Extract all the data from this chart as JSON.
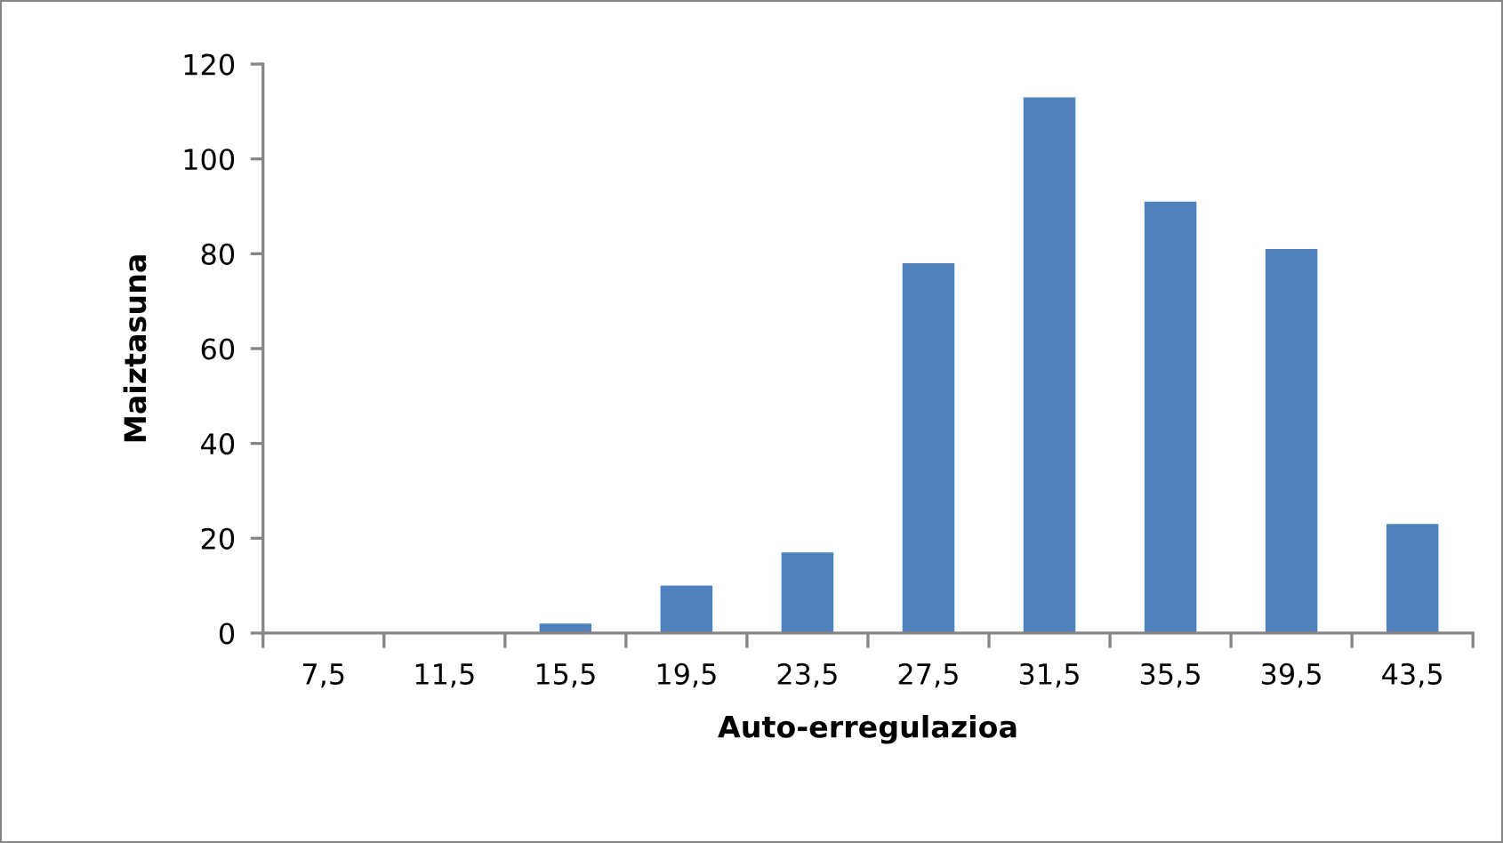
{
  "chart_data": {
    "type": "bar",
    "xlabel": "Auto-erregulazioa",
    "ylabel": "Maiztasuna",
    "categories": [
      "7,5",
      "11,5",
      "15,5",
      "19,5",
      "23,5",
      "27,5",
      "31,5",
      "35,5",
      "39,5",
      "43,5"
    ],
    "values": [
      0,
      0,
      2,
      10,
      17,
      78,
      113,
      91,
      81,
      23
    ],
    "color": "#4f81bd",
    "ylim": [
      0,
      120
    ],
    "yticks": [
      0,
      20,
      40,
      60,
      80,
      100,
      120
    ],
    "grid": false,
    "legend": false
  }
}
